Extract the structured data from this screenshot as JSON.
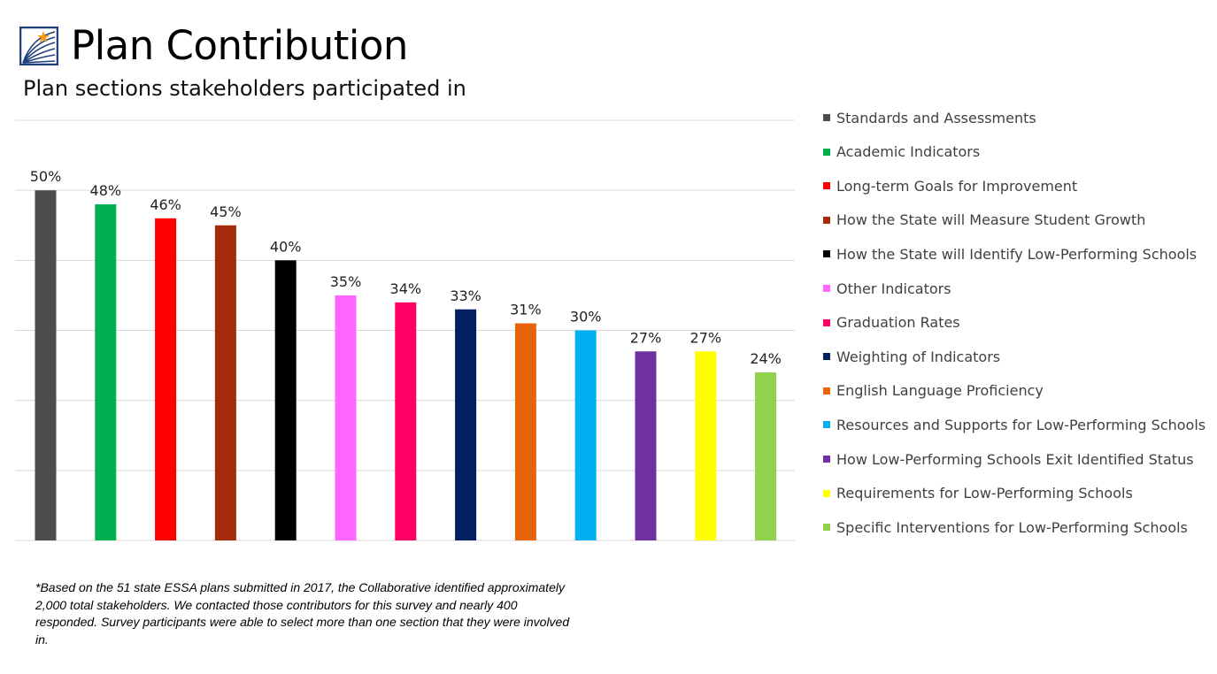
{
  "header": {
    "title": "Plan Contribution",
    "subtitle": "Plan sections stakeholders participated in"
  },
  "logo": {
    "icon": "star-book-logo-icon",
    "colors": {
      "frame": "#1F3F7A",
      "star": "#F39C12"
    }
  },
  "chart_data": {
    "type": "bar",
    "title": "",
    "xlabel": "",
    "ylabel": "",
    "ylim": [
      0,
      60
    ],
    "grid": true,
    "legend_position": "right",
    "categories": [
      "Standards and Assessments",
      "Academic Indicators",
      "Long-term Goals for Improvement",
      "How the State will Measure Student Growth",
      "How the State will Identify Low-Performing Schools",
      "Other Indicators",
      "Graduation Rates",
      "Weighting of Indicators",
      "English Language Proficiency",
      "Resources and Supports for Low-Performing Schools",
      "How Low-Performing Schools Exit Identified Status",
      "Requirements for Low-Performing Schools",
      "Specific Interventions for Low-Performing Schools"
    ],
    "values": [
      50,
      48,
      46,
      45,
      40,
      35,
      34,
      33,
      31,
      30,
      27,
      27,
      24
    ],
    "data_labels": [
      "50%",
      "48%",
      "46%",
      "45%",
      "40%",
      "35%",
      "34%",
      "33%",
      "31%",
      "30%",
      "27%",
      "27%",
      "24%"
    ],
    "colors": [
      "#4D4D4D",
      "#00B050",
      "#FF0000",
      "#A52A0A",
      "#000000",
      "#FF66FF",
      "#FF0066",
      "#002060",
      "#E8640A",
      "#00B0F0",
      "#7030A0",
      "#FFFF00",
      "#92D050"
    ]
  },
  "footnote": "*Based on the 51 state ESSA plans submitted in 2017, the Collaborative identified approximately 2,000 total stakeholders. We contacted those contributors for this survey and nearly 400 responded. Survey participants were able to select more than one section that they were involved in."
}
